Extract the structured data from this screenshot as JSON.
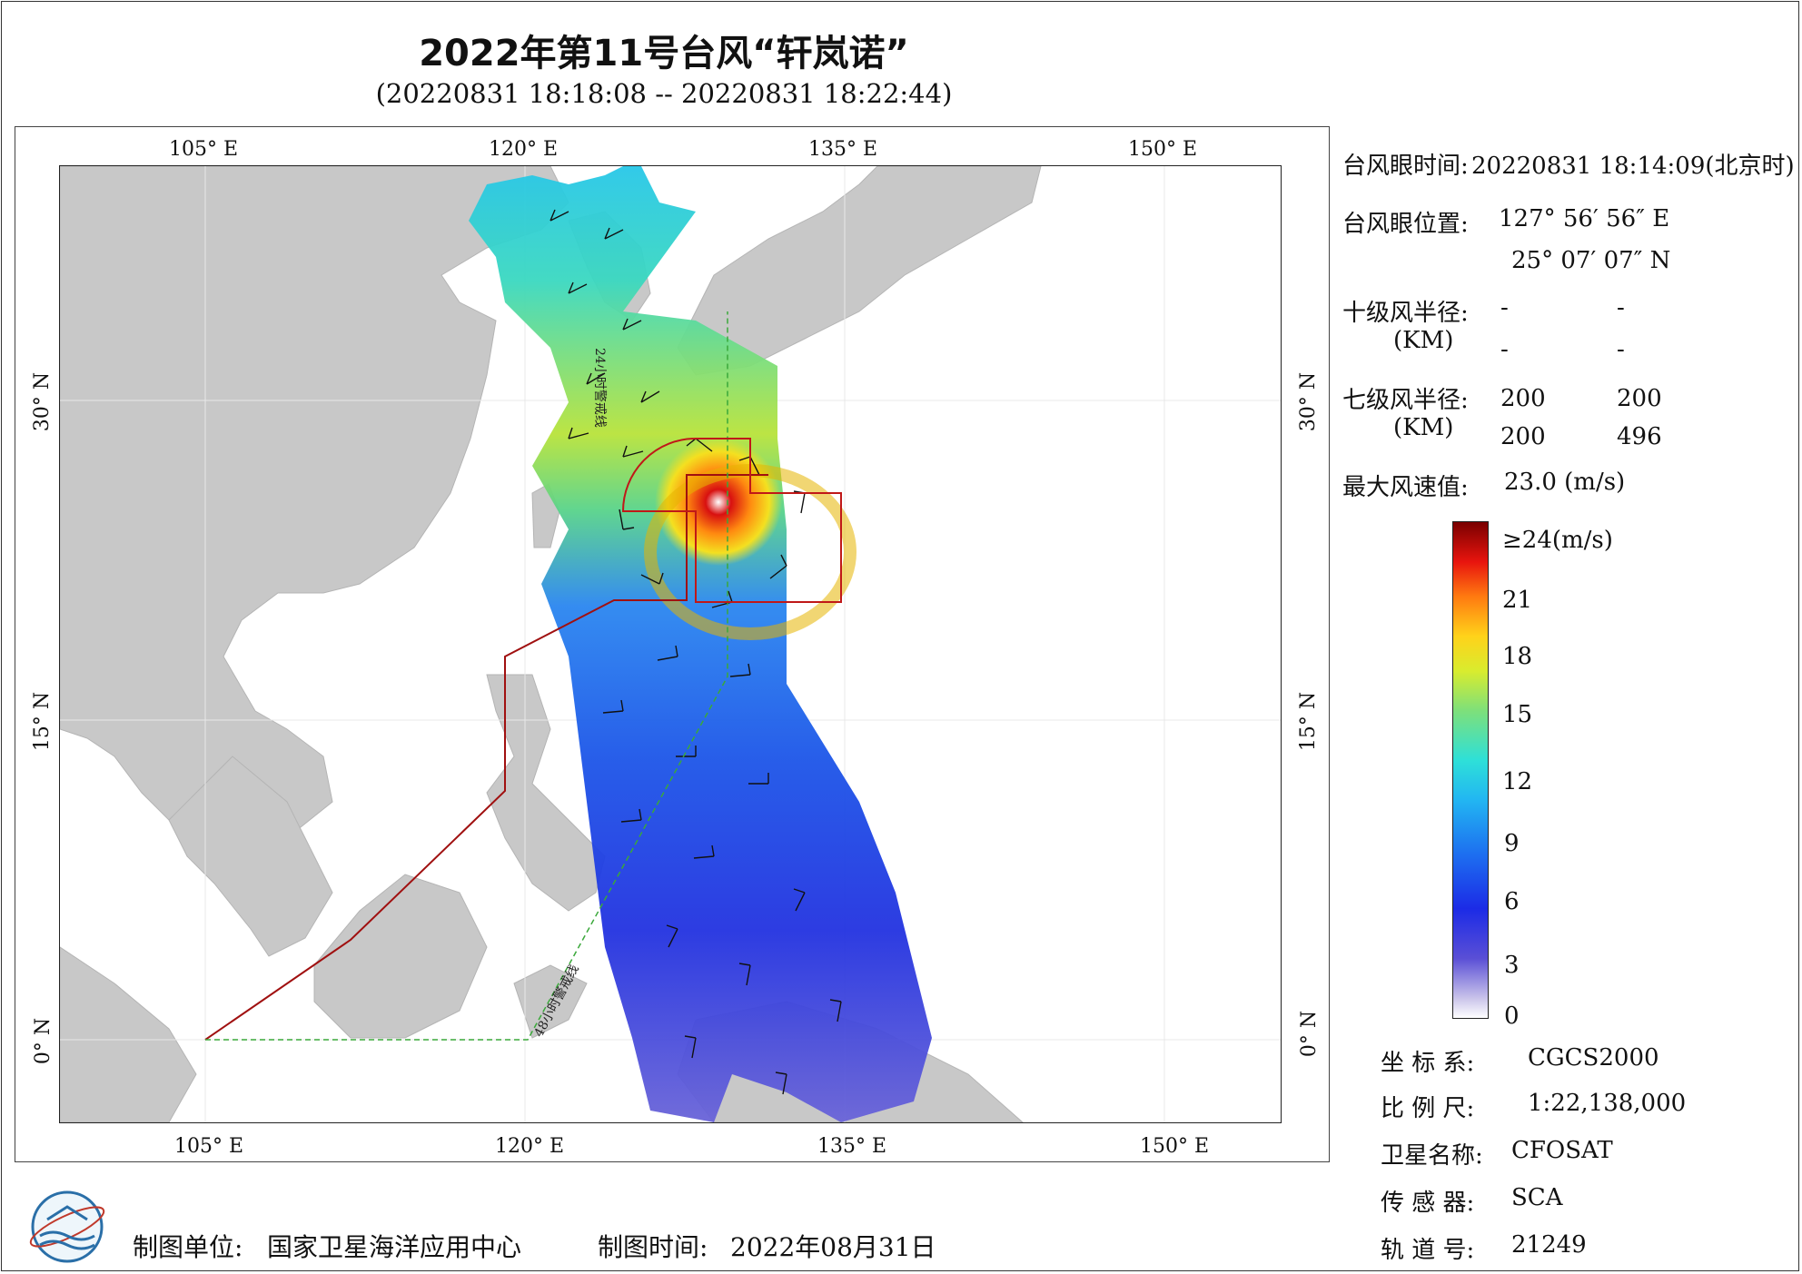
{
  "title": "2022年第11号台风“轩岚诺”",
  "subtitle": "(20220831 18:18:08 -- 20220831 18:22:44)",
  "map": {
    "lon_ticks": [
      "105° E",
      "120° E",
      "135° E",
      "150° E"
    ],
    "lat_ticks": [
      "30° N",
      "15° N",
      "0° N"
    ],
    "warning_line_24h": "24小时警戒线",
    "warning_line_48h": "48小时警戒线"
  },
  "info": {
    "eye_time_label": "台风眼时间:",
    "eye_time_value": "20220831 18:14:09(北京时)",
    "eye_pos_label": "台风眼位置:",
    "eye_lon": "127° 56′ 56″ E",
    "eye_lat": "25° 07′ 07″ N",
    "r10_label": "十级风半径:",
    "r10_unit": "(KM)",
    "r10_values": [
      "-",
      "-",
      "-",
      "-"
    ],
    "r7_label": "七级风半径:",
    "r7_unit": "(KM)",
    "r7_values": [
      "200",
      "200",
      "200",
      "496"
    ],
    "max_wind_label": "最大风速值:",
    "max_wind_value": "23.0 (m/s)"
  },
  "colorbar": {
    "labels": [
      "≥24(m/s)",
      "21",
      "18",
      "15",
      "12",
      "9",
      "6",
      "3",
      "0"
    ],
    "colors": [
      "#ffffff",
      "#c9c3ea",
      "#5a4fd6",
      "#1c2be6",
      "#1d6ff0",
      "#22b6f2",
      "#2ee0d8",
      "#7ee07a",
      "#d9ec2e",
      "#ffd21a",
      "#ff7a10",
      "#e8140e",
      "#7a0000"
    ]
  },
  "meta": {
    "coord_label": "坐 标 系:",
    "coord_value": "CGCS2000",
    "scale_label": "比 例 尺:",
    "scale_value": "1:22,138,000",
    "sat_label": "卫星名称:",
    "sat_value": "CFOSAT",
    "sensor_label": "传 感 器:",
    "sensor_value": "SCA",
    "orbit_label": "轨 道 号:",
    "orbit_value": "21249"
  },
  "footer": {
    "unit_label": "制图单位:",
    "unit_value": "国家卫星海洋应用中心",
    "time_label": "制图时间:",
    "time_value": "2022年08月31日"
  }
}
